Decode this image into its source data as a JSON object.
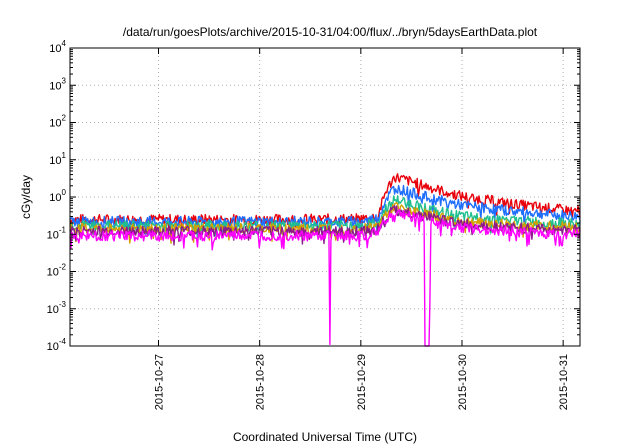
{
  "chart_data": {
    "type": "line",
    "title": "/data/run/goesPlots/archive/2015-10-31/04:00/flux/../bryn/5daysEarthData.plot",
    "xlabel": "Coordinated Universal Time (UTC)",
    "ylabel": "cGy/day",
    "x_range": [
      "2015-10-26 03:00",
      "2015-10-31 04:00"
    ],
    "ylim": [
      0.0001,
      10000
    ],
    "y_scale": "log",
    "grid": true,
    "legend": "none",
    "x_ticks": [
      "2015-10-27",
      "2015-10-28",
      "2015-10-29",
      "2015-10-30",
      "2015-10-31"
    ],
    "y_ticks": [
      {
        "value": 0.0001,
        "mantissa": "10",
        "exp": "-4"
      },
      {
        "value": 0.001,
        "mantissa": "10",
        "exp": "-3"
      },
      {
        "value": 0.01,
        "mantissa": "10",
        "exp": "-2"
      },
      {
        "value": 0.1,
        "mantissa": "10",
        "exp": "-1"
      },
      {
        "value": 1,
        "mantissa": "10",
        "exp": "0"
      },
      {
        "value": 10,
        "mantissa": "10",
        "exp": "1"
      },
      {
        "value": 100,
        "mantissa": "10",
        "exp": "2"
      },
      {
        "value": 1000,
        "mantissa": "10",
        "exp": "3"
      },
      {
        "value": 10000,
        "mantissa": "10",
        "exp": "4"
      }
    ],
    "series": [
      {
        "color": "#e8000b",
        "x": [
          "2015-10-26 03:00",
          "2015-10-27 00:00",
          "2015-10-28 00:00",
          "2015-10-29 00:00",
          "2015-10-29 04:00",
          "2015-10-29 06:00",
          "2015-10-29 08:00",
          "2015-10-29 12:00",
          "2015-10-29 18:00",
          "2015-10-30 00:00",
          "2015-10-30 12:00",
          "2015-10-31 00:00",
          "2015-10-31 04:00"
        ],
        "y": [
          0.25,
          0.25,
          0.25,
          0.26,
          0.3,
          1.5,
          3.5,
          2.6,
          1.6,
          1.05,
          0.65,
          0.45,
          0.42
        ]
      },
      {
        "color": "#1f6fff",
        "x": [
          "2015-10-26 03:00",
          "2015-10-27 00:00",
          "2015-10-28 00:00",
          "2015-10-29 00:00",
          "2015-10-29 04:00",
          "2015-10-29 06:00",
          "2015-10-29 08:00",
          "2015-10-29 12:00",
          "2015-10-29 18:00",
          "2015-10-30 00:00",
          "2015-10-30 12:00",
          "2015-10-31 00:00",
          "2015-10-31 04:00"
        ],
        "y": [
          0.22,
          0.22,
          0.22,
          0.22,
          0.27,
          0.9,
          1.8,
          1.3,
          0.85,
          0.6,
          0.42,
          0.32,
          0.3
        ]
      },
      {
        "color": "#1fbf8f",
        "x": [
          "2015-10-26 03:00",
          "2015-10-27 00:00",
          "2015-10-28 00:00",
          "2015-10-29 00:00",
          "2015-10-29 04:00",
          "2015-10-29 06:00",
          "2015-10-29 08:00",
          "2015-10-29 12:00",
          "2015-10-29 18:00",
          "2015-10-30 00:00",
          "2015-10-30 12:00",
          "2015-10-31 00:00",
          "2015-10-31 04:00"
        ],
        "y": [
          0.17,
          0.17,
          0.17,
          0.17,
          0.2,
          0.5,
          0.85,
          0.65,
          0.42,
          0.3,
          0.23,
          0.2,
          0.19
        ]
      },
      {
        "color": "#d4a000",
        "x": [
          "2015-10-26 03:00",
          "2015-10-27 00:00",
          "2015-10-28 00:00",
          "2015-10-29 00:00",
          "2015-10-29 04:00",
          "2015-10-29 06:00",
          "2015-10-29 08:00",
          "2015-10-29 12:00",
          "2015-10-29 18:00",
          "2015-10-30 00:00",
          "2015-10-30 12:00",
          "2015-10-31 00:00",
          "2015-10-31 04:00"
        ],
        "y": [
          0.14,
          0.14,
          0.14,
          0.14,
          0.16,
          0.35,
          0.55,
          0.42,
          0.3,
          0.22,
          0.18,
          0.16,
          0.15
        ]
      },
      {
        "color": "#8b1a8b",
        "x": [
          "2015-10-26 03:00",
          "2015-10-27 00:00",
          "2015-10-28 00:00",
          "2015-10-29 00:00",
          "2015-10-29 04:00",
          "2015-10-29 06:00",
          "2015-10-29 08:00",
          "2015-10-29 12:00",
          "2015-10-29 18:00",
          "2015-10-30 00:00",
          "2015-10-30 12:00",
          "2015-10-31 00:00",
          "2015-10-31 04:00"
        ],
        "y": [
          0.12,
          0.12,
          0.12,
          0.12,
          0.14,
          0.3,
          0.45,
          0.36,
          0.26,
          0.19,
          0.15,
          0.13,
          0.13
        ]
      },
      {
        "color": "#ff00ff",
        "x": [
          "2015-10-26 03:00",
          "2015-10-27 00:00",
          "2015-10-28 00:00",
          "2015-10-28 16:30",
          "2015-10-28 16:40",
          "2015-10-28 16:50",
          "2015-10-29 00:00",
          "2015-10-29 04:00",
          "2015-10-29 06:00",
          "2015-10-29 08:00",
          "2015-10-29 12:00",
          "2015-10-29 15:00",
          "2015-10-29 15:10",
          "2015-10-29 16:20",
          "2015-10-29 16:30",
          "2015-10-29 18:00",
          "2015-10-30 00:00",
          "2015-10-30 12:00",
          "2015-10-31 00:00",
          "2015-10-31 04:00"
        ],
        "y": [
          0.09,
          0.09,
          0.09,
          0.09,
          0.0001,
          0.09,
          0.09,
          0.11,
          0.25,
          0.38,
          0.3,
          0.25,
          0.0001,
          0.0001,
          0.22,
          0.2,
          0.15,
          0.12,
          0.1,
          0.1
        ]
      }
    ]
  }
}
